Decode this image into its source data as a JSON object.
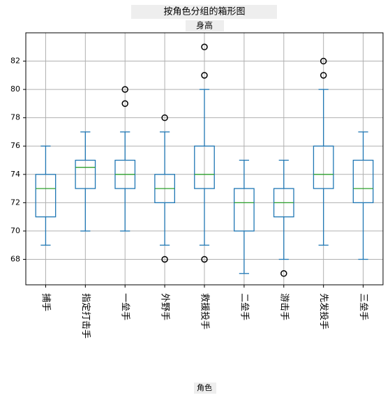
{
  "chart_data": {
    "type": "box",
    "title": "按角色分组的箱形图",
    "subtitle": "身高",
    "x_label": "角色",
    "categories": [
      "捕手",
      "指定打击手",
      "一垒手",
      "外野手",
      "救援投手",
      "二垒手",
      "游击手",
      "先发投手",
      "三垒手"
    ],
    "boxes": [
      {
        "whislo": 69,
        "q1": 71,
        "med": 73,
        "q3": 74,
        "whishi": 76,
        "fliers": []
      },
      {
        "whislo": 70,
        "q1": 73,
        "med": 74.5,
        "q3": 75,
        "whishi": 77,
        "fliers": []
      },
      {
        "whislo": 70,
        "q1": 73,
        "med": 74,
        "q3": 75,
        "whishi": 77,
        "fliers": [
          80,
          79
        ]
      },
      {
        "whislo": 69,
        "q1": 72,
        "med": 73,
        "q3": 74,
        "whishi": 77,
        "fliers": [
          78,
          68
        ]
      },
      {
        "whislo": 69,
        "q1": 73,
        "med": 74,
        "q3": 76,
        "whishi": 80,
        "fliers": [
          83,
          81,
          68
        ]
      },
      {
        "whislo": 67,
        "q1": 70,
        "med": 72,
        "q3": 73,
        "whishi": 75,
        "fliers": []
      },
      {
        "whislo": 68,
        "q1": 71,
        "med": 72,
        "q3": 73,
        "whishi": 75,
        "fliers": [
          67
        ]
      },
      {
        "whislo": 69,
        "q1": 73,
        "med": 74,
        "q3": 76,
        "whishi": 80,
        "fliers": [
          82,
          81
        ]
      },
      {
        "whislo": 68,
        "q1": 72,
        "med": 73,
        "q3": 75,
        "whishi": 77,
        "fliers": []
      }
    ],
    "color": "#1f77b4",
    "median_color": "#2ca02c",
    "ylim": [
      66.2,
      84
    ],
    "yticks": [
      68,
      70,
      72,
      74,
      76,
      78,
      80,
      82
    ],
    "grid": true
  }
}
